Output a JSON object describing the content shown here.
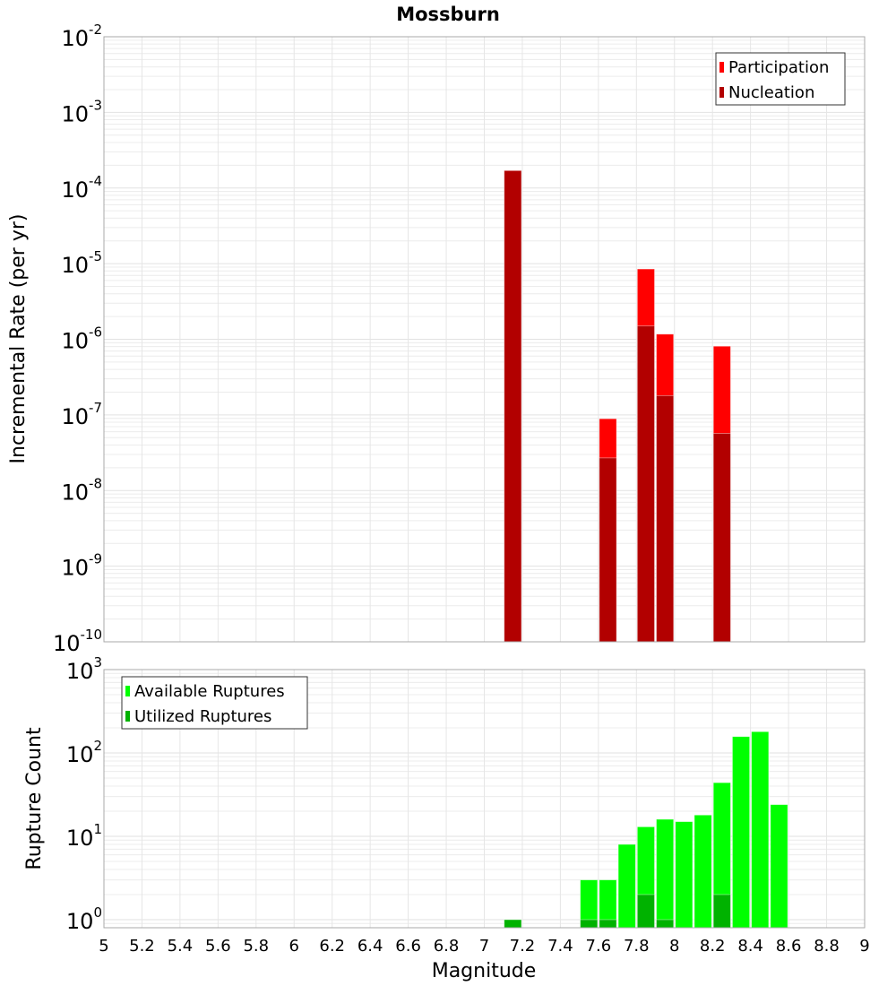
{
  "chart_data": [
    {
      "type": "bar",
      "title": "Mossburn",
      "xlabel": "Magnitude",
      "ylabel": "Incremental Rate (per yr)",
      "yscale": "log",
      "xlim": [
        5,
        9
      ],
      "ylim": [
        1e-10,
        0.01
      ],
      "bin_width": 0.1,
      "grid": true,
      "legend_position": "top-right",
      "series": [
        {
          "name": "Participation",
          "color": "#ff0000",
          "x": [
            7.15,
            7.65,
            7.85,
            7.95,
            8.25
          ],
          "values": [
            0.00017,
            8.9e-08,
            8.5e-06,
            1.17e-06,
            8.1e-07
          ]
        },
        {
          "name": "Nucleation",
          "color": "#b20000",
          "x": [
            7.15,
            7.65,
            7.85,
            7.95,
            8.25
          ],
          "values": [
            0.00017,
            2.7e-08,
            1.5e-06,
            1.8e-07,
            5.7e-08
          ]
        }
      ],
      "yticks": [
        {
          "base": "10",
          "exp": "-10"
        },
        {
          "base": "10",
          "exp": "-9"
        },
        {
          "base": "10",
          "exp": "-8"
        },
        {
          "base": "10",
          "exp": "-7"
        },
        {
          "base": "10",
          "exp": "-6"
        },
        {
          "base": "10",
          "exp": "-5"
        },
        {
          "base": "10",
          "exp": "-4"
        },
        {
          "base": "10",
          "exp": "-3"
        },
        {
          "base": "10",
          "exp": "-2"
        }
      ]
    },
    {
      "type": "bar",
      "xlabel": "Magnitude",
      "ylabel": "Rupture Count",
      "yscale": "log",
      "xlim": [
        5,
        9
      ],
      "ylim": [
        0.8,
        1000
      ],
      "bin_width": 0.1,
      "grid": true,
      "legend_position": "top-left",
      "series": [
        {
          "name": "Available Ruptures",
          "color": "#00ff00",
          "x": [
            7.15,
            7.55,
            7.65,
            7.75,
            7.85,
            7.95,
            8.05,
            8.15,
            8.25,
            8.35,
            8.45,
            8.55
          ],
          "values": [
            1,
            3,
            3,
            8,
            13,
            16,
            15,
            18,
            44,
            157,
            180,
            24
          ]
        },
        {
          "name": "Utilized Ruptures",
          "color": "#00b200",
          "x": [
            7.15,
            7.55,
            7.65,
            7.85,
            7.95,
            8.25
          ],
          "values": [
            1,
            1,
            1,
            2,
            1,
            2
          ]
        }
      ],
      "yticks": [
        {
          "base": "10",
          "exp": "0"
        },
        {
          "base": "10",
          "exp": "1"
        },
        {
          "base": "10",
          "exp": "2"
        },
        {
          "base": "10",
          "exp": "3"
        }
      ]
    }
  ],
  "xticks": [
    "5",
    "5.2",
    "5.4",
    "5.6",
    "5.8",
    "6",
    "6.2",
    "6.4",
    "6.6",
    "6.8",
    "7",
    "7.2",
    "7.4",
    "7.6",
    "7.8",
    "8",
    "8.2",
    "8.4",
    "8.6",
    "8.8",
    "9"
  ]
}
